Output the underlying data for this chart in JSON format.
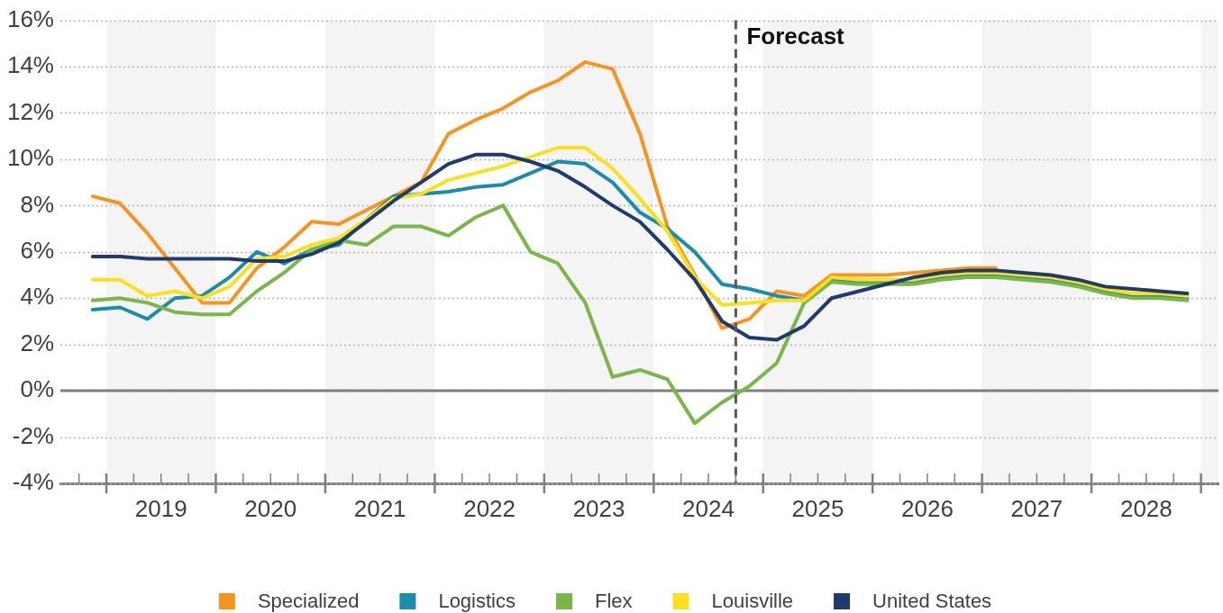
{
  "chart_data": {
    "type": "line",
    "x": [
      2018.875,
      2019.125,
      2019.375,
      2019.625,
      2019.875,
      2020.125,
      2020.375,
      2020.625,
      2020.875,
      2021.125,
      2021.375,
      2021.625,
      2021.875,
      2022.125,
      2022.375,
      2022.625,
      2022.875,
      2023.125,
      2023.375,
      2023.625,
      2023.875,
      2024.125,
      2024.375,
      2024.625,
      2024.875,
      2025.125,
      2025.375,
      2025.625,
      2025.875,
      2026.125,
      2026.375,
      2026.625,
      2026.875,
      2027.125,
      2027.375,
      2027.625,
      2027.875,
      2028.125,
      2028.375,
      2028.625,
      2028.875
    ],
    "series": [
      {
        "name": "Specialized",
        "color": "#f7941d",
        "values": [
          8.4,
          8.1,
          6.8,
          5.3,
          3.8,
          3.8,
          5.3,
          6.2,
          7.3,
          7.2,
          7.8,
          8.4,
          9.0,
          11.1,
          11.7,
          12.2,
          12.9,
          13.4,
          14.2,
          13.9,
          11.1,
          7.1,
          5.0,
          2.7,
          3.1,
          4.3,
          4.1,
          5.0,
          5.0,
          5.0,
          5.1,
          5.2,
          5.3,
          5.3,
          null,
          null,
          null,
          null,
          null,
          null,
          null
        ]
      },
      {
        "name": "Logistics",
        "color": "#1b8cad",
        "values": [
          3.5,
          3.6,
          3.1,
          4.0,
          4.1,
          4.9,
          6.0,
          5.5,
          6.1,
          6.3,
          7.4,
          8.4,
          8.5,
          8.6,
          8.8,
          8.9,
          9.4,
          9.9,
          9.8,
          9.0,
          7.7,
          7.0,
          6.0,
          4.6,
          4.4,
          4.1,
          3.9,
          4.8,
          4.7,
          4.7,
          4.7,
          4.9,
          5.0,
          5.0,
          4.9,
          4.8,
          4.6,
          4.3,
          4.1,
          4.1,
          4.0
        ]
      },
      {
        "name": "Flex",
        "color": "#7ab648",
        "values": [
          3.9,
          4.0,
          3.8,
          3.4,
          3.3,
          3.3,
          4.3,
          5.1,
          6.1,
          6.5,
          6.3,
          7.1,
          7.1,
          6.7,
          7.5,
          8.0,
          6.0,
          5.5,
          3.8,
          0.6,
          0.9,
          0.5,
          -1.4,
          -0.5,
          0.2,
          1.2,
          3.8,
          4.7,
          4.6,
          4.6,
          4.6,
          4.8,
          4.9,
          4.9,
          4.8,
          4.7,
          4.5,
          4.2,
          4.0,
          4.0,
          3.9
        ]
      },
      {
        "name": "Louisville",
        "color": "#fbe01e",
        "values": [
          4.8,
          4.8,
          4.1,
          4.3,
          4.0,
          4.5,
          5.7,
          5.8,
          6.3,
          6.6,
          7.4,
          8.3,
          8.5,
          9.1,
          9.4,
          9.7,
          10.1,
          10.5,
          10.5,
          9.6,
          8.3,
          6.9,
          4.9,
          3.7,
          3.8,
          3.9,
          3.9,
          4.9,
          4.8,
          4.8,
          4.8,
          5.0,
          5.1,
          5.1,
          5.0,
          4.9,
          4.7,
          4.4,
          4.2,
          4.2,
          4.1
        ]
      },
      {
        "name": "United States",
        "color": "#1f3a6e",
        "values": [
          5.8,
          5.8,
          5.7,
          5.7,
          5.7,
          5.7,
          5.6,
          5.6,
          5.9,
          6.4,
          7.3,
          8.2,
          9.0,
          9.8,
          10.2,
          10.2,
          9.9,
          9.5,
          8.8,
          8.0,
          7.3,
          6.1,
          4.8,
          3.0,
          2.3,
          2.2,
          2.8,
          4.0,
          4.3,
          4.6,
          4.9,
          5.1,
          5.2,
          5.2,
          5.1,
          5.0,
          4.8,
          4.5,
          4.4,
          4.3,
          4.2
        ]
      }
    ],
    "xlim": [
      2018.58,
      2029.16
    ],
    "xticks": [
      {
        "value": 2018.75,
        "label": null
      },
      {
        "value": 2019,
        "label": null
      },
      {
        "value": 2019.25,
        "label": null
      },
      {
        "value": 2019.5,
        "label": "2019"
      },
      {
        "value": 2019.75,
        "label": null
      },
      {
        "value": 2020,
        "label": null
      },
      {
        "value": 2020.25,
        "label": null
      },
      {
        "value": 2020.5,
        "label": "2020"
      },
      {
        "value": 2020.75,
        "label": null
      },
      {
        "value": 2021,
        "label": null
      },
      {
        "value": 2021.25,
        "label": null
      },
      {
        "value": 2021.5,
        "label": "2021"
      },
      {
        "value": 2021.75,
        "label": null
      },
      {
        "value": 2022,
        "label": null
      },
      {
        "value": 2022.25,
        "label": null
      },
      {
        "value": 2022.5,
        "label": "2022"
      },
      {
        "value": 2022.75,
        "label": null
      },
      {
        "value": 2023,
        "label": null
      },
      {
        "value": 2023.25,
        "label": null
      },
      {
        "value": 2023.5,
        "label": "2023"
      },
      {
        "value": 2023.75,
        "label": null
      },
      {
        "value": 2024,
        "label": null
      },
      {
        "value": 2024.25,
        "label": null
      },
      {
        "value": 2024.5,
        "label": "2024"
      },
      {
        "value": 2024.75,
        "label": null
      },
      {
        "value": 2025,
        "label": null
      },
      {
        "value": 2025.25,
        "label": null
      },
      {
        "value": 2025.5,
        "label": "2025"
      },
      {
        "value": 2025.75,
        "label": null
      },
      {
        "value": 2026,
        "label": null
      },
      {
        "value": 2026.25,
        "label": null
      },
      {
        "value": 2026.5,
        "label": "2026"
      },
      {
        "value": 2026.75,
        "label": null
      },
      {
        "value": 2027,
        "label": null
      },
      {
        "value": 2027.25,
        "label": null
      },
      {
        "value": 2027.5,
        "label": "2027"
      },
      {
        "value": 2027.75,
        "label": null
      },
      {
        "value": 2028,
        "label": null
      },
      {
        "value": 2028.25,
        "label": null
      },
      {
        "value": 2028.5,
        "label": "2028"
      },
      {
        "value": 2028.75,
        "label": null
      },
      {
        "value": 2029,
        "label": null
      }
    ],
    "ylim": [
      -4,
      16
    ],
    "yticks": [
      {
        "value": -4,
        "label": "-4%"
      },
      {
        "value": -2,
        "label": "-2%"
      },
      {
        "value": 0,
        "label": "0%"
      },
      {
        "value": 2,
        "label": "2%"
      },
      {
        "value": 4,
        "label": "4%"
      },
      {
        "value": 6,
        "label": "6%"
      },
      {
        "value": 8,
        "label": "8%"
      },
      {
        "value": 10,
        "label": "10%"
      },
      {
        "value": 12,
        "label": "12%"
      },
      {
        "value": 14,
        "label": "14%"
      },
      {
        "value": 16,
        "label": "16%"
      }
    ],
    "bands": [
      {
        "axis": "x",
        "from": 2019,
        "to": 2020,
        "color": "#f4f4f4"
      },
      {
        "axis": "x",
        "from": 2021,
        "to": 2022,
        "color": "#f4f4f4"
      },
      {
        "axis": "x",
        "from": 2023,
        "to": 2024,
        "color": "#f4f4f4"
      },
      {
        "axis": "x",
        "from": 2025,
        "to": 2026,
        "color": "#f4f4f4"
      },
      {
        "axis": "x",
        "from": 2027,
        "to": 2028,
        "color": "#f4f4f4"
      },
      {
        "axis": "x",
        "from": 2029,
        "to": 2029.16,
        "color": "#f4f4f4"
      }
    ],
    "ref_lines": [
      {
        "axis": "y",
        "value": 0,
        "color": "#7f7f7f"
      },
      {
        "axis": "x",
        "value": 2024.75,
        "label": "Forecast",
        "color": "#595959",
        "line_style": "dashed"
      }
    ],
    "grid": "y",
    "legend": "bottom",
    "marker": "none",
    "line_style": "solid"
  }
}
